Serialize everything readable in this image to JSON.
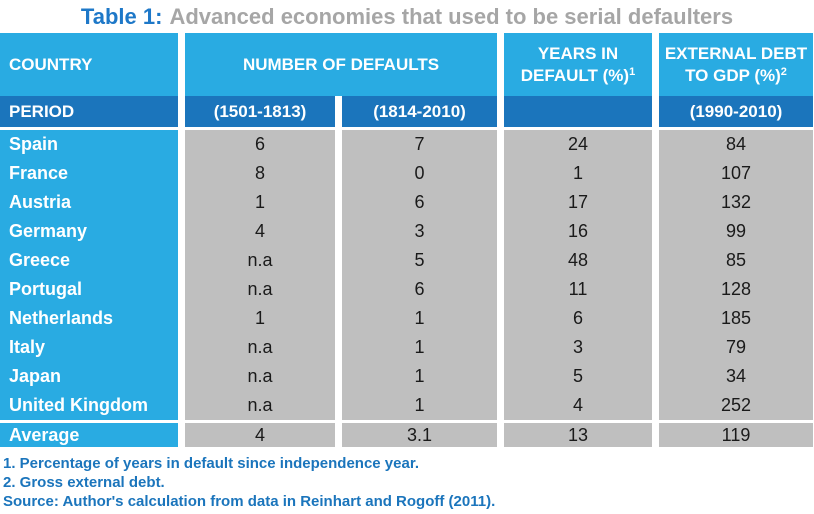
{
  "title": {
    "prefix": "Table 1:",
    "text": "Advanced economies that used to be serial defaulters"
  },
  "header": {
    "country": "COUNTRY",
    "defaults": "NUMBER OF DEFAULTS",
    "years_line1": "YEARS IN",
    "years_line2": "DEFAULT (%)",
    "years_sup": "1",
    "debt_line1": "EXTERNAL DEBT",
    "debt_line2": "TO GDP (%)",
    "debt_sup": "2"
  },
  "period_row": {
    "label": "PERIOD",
    "col_1501": "(1501-1813)",
    "col_1814": "(1814-2010)",
    "col_years": "",
    "col_debt": "(1990-2010)"
  },
  "rows": [
    {
      "country": "Spain",
      "defaults_1501": "6",
      "defaults_1814": "7",
      "years_in_default": "24",
      "external_debt": "84"
    },
    {
      "country": "France",
      "defaults_1501": "8",
      "defaults_1814": "0",
      "years_in_default": "1",
      "external_debt": "107"
    },
    {
      "country": "Austria",
      "defaults_1501": "1",
      "defaults_1814": "6",
      "years_in_default": "17",
      "external_debt": "132"
    },
    {
      "country": "Germany",
      "defaults_1501": "4",
      "defaults_1814": "3",
      "years_in_default": "16",
      "external_debt": "99"
    },
    {
      "country": "Greece",
      "defaults_1501": "n.a",
      "defaults_1814": "5",
      "years_in_default": "48",
      "external_debt": "85"
    },
    {
      "country": "Portugal",
      "defaults_1501": "n.a",
      "defaults_1814": "6",
      "years_in_default": "11",
      "external_debt": "128"
    },
    {
      "country": "Netherlands",
      "defaults_1501": "1",
      "defaults_1814": "1",
      "years_in_default": "6",
      "external_debt": "185"
    },
    {
      "country": "Italy",
      "defaults_1501": "n.a",
      "defaults_1814": "1",
      "years_in_default": "3",
      "external_debt": "79"
    },
    {
      "country": "Japan",
      "defaults_1501": "n.a",
      "defaults_1814": "1",
      "years_in_default": "5",
      "external_debt": "34"
    },
    {
      "country": "United Kingdom",
      "defaults_1501": "n.a",
      "defaults_1814": "1",
      "years_in_default": "4",
      "external_debt": "252"
    }
  ],
  "average_row": {
    "label": "Average",
    "defaults_1501": "4",
    "defaults_1814": "3.1",
    "years_in_default": "13",
    "external_debt": "119"
  },
  "footnotes": [
    "1. Percentage of years in default since independence year.",
    "2. Gross external debt.",
    "Source: Author's calculation from data in Reinhart and Rogoff (2011)."
  ],
  "colors": {
    "header_blue": "#29ABE2",
    "period_blue": "#1B75BC",
    "cell_gray": "#BFBFBF",
    "title_blue": "#1E78C8",
    "title_gray": "#A6A6A6",
    "note_blue": "#1B75BC"
  },
  "chart_data": {
    "type": "table",
    "title": "Table 1: Advanced economies that used to be serial defaulters",
    "columns": [
      "COUNTRY",
      "NUMBER OF DEFAULTS (1501-1813)",
      "NUMBER OF DEFAULTS (1814-2010)",
      "YEARS IN DEFAULT (%)",
      "EXTERNAL DEBT TO GDP (%) (1990-2010)"
    ],
    "rows": [
      [
        "Spain",
        6,
        7,
        24,
        84
      ],
      [
        "France",
        8,
        0,
        1,
        107
      ],
      [
        "Austria",
        1,
        6,
        17,
        132
      ],
      [
        "Germany",
        4,
        3,
        16,
        99
      ],
      [
        "Greece",
        "n.a",
        5,
        48,
        85
      ],
      [
        "Portugal",
        "n.a",
        6,
        11,
        128
      ],
      [
        "Netherlands",
        1,
        1,
        6,
        185
      ],
      [
        "Italy",
        "n.a",
        1,
        3,
        79
      ],
      [
        "Japan",
        "n.a",
        1,
        5,
        34
      ],
      [
        "United Kingdom",
        "n.a",
        1,
        4,
        252
      ],
      [
        "Average",
        4,
        3.1,
        13,
        119
      ]
    ]
  }
}
